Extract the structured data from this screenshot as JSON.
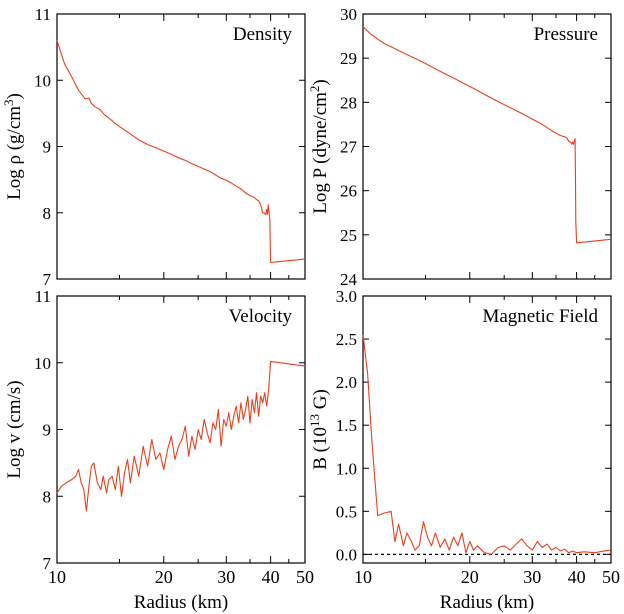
{
  "colors": {
    "series": "#e8401c",
    "axis": "#000000",
    "zero_line": "#000000"
  },
  "chart_data": [
    {
      "type": "line",
      "title": "Density",
      "xlabel": "",
      "ylabel": "Log ρ (g/cm³)",
      "ylabel_parts": [
        "Log ρ (g/cm",
        "3",
        ")"
      ],
      "xscale": "log",
      "xlim": [
        10,
        50
      ],
      "ylim": [
        7,
        11
      ],
      "xticks": [
        10,
        20,
        30,
        40,
        50
      ],
      "yticks": [
        7,
        8,
        9,
        10,
        11
      ],
      "ytick_labels": [
        "7",
        "8",
        "9",
        "10",
        "11"
      ],
      "series": [
        {
          "x": [
            10.0,
            10.5,
            11.0,
            11.5,
            12.0,
            12.3,
            12.5,
            12.8,
            13.2,
            13.6,
            14.0,
            14.5,
            15.0,
            15.5,
            16.0,
            16.5,
            17.0,
            18.0,
            19.0,
            20.0,
            21.0,
            22.0,
            23.0,
            24.0,
            25.0,
            26.0,
            27.0,
            28.0,
            29.0,
            30.0,
            31.0,
            32.0,
            33.0,
            34.0,
            35.0,
            36.0,
            36.5,
            37.0,
            37.5,
            38.0,
            38.3,
            38.6,
            38.8,
            39.0,
            39.2,
            39.4,
            39.6,
            39.8,
            40.0,
            50.0
          ],
          "y": [
            10.6,
            10.25,
            10.05,
            9.85,
            9.72,
            9.73,
            9.65,
            9.6,
            9.56,
            9.48,
            9.43,
            9.36,
            9.3,
            9.25,
            9.2,
            9.15,
            9.1,
            9.03,
            8.98,
            8.93,
            8.88,
            8.83,
            8.79,
            8.74,
            8.7,
            8.66,
            8.62,
            8.57,
            8.52,
            8.49,
            8.45,
            8.4,
            8.36,
            8.3,
            8.26,
            8.23,
            8.2,
            8.18,
            8.12,
            8.0,
            8.0,
            7.98,
            7.97,
            8.05,
            7.98,
            8.12,
            8.0,
            7.9,
            7.25,
            7.3
          ]
        }
      ]
    },
    {
      "type": "line",
      "title": "Pressure",
      "xlabel": "",
      "ylabel": "Log P (dyne/cm²)",
      "ylabel_parts": [
        "Log P (dyne/cm",
        "2",
        ")"
      ],
      "xscale": "log",
      "xlim": [
        10,
        50
      ],
      "ylim": [
        24,
        30
      ],
      "xticks": [
        10,
        20,
        30,
        40,
        50
      ],
      "yticks": [
        24,
        25,
        26,
        27,
        28,
        29,
        30
      ],
      "ytick_labels": [
        "24",
        "25",
        "26",
        "27",
        "28",
        "29",
        "30"
      ],
      "series": [
        {
          "x": [
            10.0,
            10.5,
            11.0,
            11.5,
            12.0,
            13.0,
            14.0,
            15.0,
            16.0,
            17.0,
            18.0,
            19.0,
            20.0,
            22.0,
            24.0,
            26.0,
            28.0,
            30.0,
            32.0,
            34.0,
            35.0,
            36.0,
            37.0,
            37.5,
            38.0,
            38.5,
            38.8,
            39.0,
            39.2,
            39.4,
            39.6,
            39.7,
            39.8,
            40.0,
            50.0
          ],
          "y": [
            29.72,
            29.55,
            29.43,
            29.33,
            29.26,
            29.12,
            29.0,
            28.88,
            28.76,
            28.65,
            28.55,
            28.45,
            28.36,
            28.18,
            28.02,
            27.88,
            27.75,
            27.62,
            27.5,
            27.36,
            27.3,
            27.25,
            27.22,
            27.2,
            27.12,
            27.1,
            27.05,
            27.1,
            27.05,
            27.12,
            27.18,
            26.2,
            25.3,
            24.82,
            24.9
          ]
        }
      ]
    },
    {
      "type": "line",
      "title": "Velocity",
      "xlabel": "Radius (km)",
      "ylabel": "Log v (cm/s)",
      "xscale": "log",
      "xlim": [
        10,
        50
      ],
      "ylim": [
        7,
        11
      ],
      "xticks": [
        10,
        20,
        30,
        40,
        50
      ],
      "xtick_labels": [
        "10",
        "20",
        "30",
        "40",
        "50"
      ],
      "yticks": [
        7,
        8,
        9,
        10,
        11
      ],
      "ytick_labels": [
        "7",
        "8",
        "9",
        "10",
        "11"
      ],
      "series": [
        {
          "x": [
            10.0,
            10.3,
            10.6,
            11.0,
            11.3,
            11.5,
            11.7,
            11.9,
            12.1,
            12.3,
            12.5,
            12.7,
            13.0,
            13.3,
            13.5,
            13.8,
            14.0,
            14.3,
            14.6,
            14.9,
            15.2,
            15.5,
            15.8,
            16.1,
            16.5,
            17.0,
            17.5,
            18.0,
            18.5,
            19.0,
            19.5,
            20.0,
            20.5,
            21.0,
            21.5,
            22.0,
            22.5,
            23.0,
            23.5,
            24.0,
            24.5,
            25.0,
            25.5,
            26.0,
            26.5,
            27.0,
            27.5,
            28.0,
            28.5,
            29.0,
            29.5,
            30.0,
            30.5,
            31.0,
            31.5,
            32.0,
            32.5,
            33.0,
            33.5,
            34.0,
            34.5,
            35.0,
            35.5,
            36.0,
            36.5,
            37.0,
            37.5,
            38.0,
            38.5,
            39.0,
            39.5,
            40.0,
            50.0
          ],
          "y": [
            8.05,
            8.15,
            8.2,
            8.25,
            8.3,
            8.4,
            8.2,
            8.1,
            7.78,
            8.15,
            8.45,
            8.5,
            8.2,
            8.1,
            8.3,
            8.05,
            8.25,
            8.3,
            8.1,
            8.45,
            8.0,
            8.35,
            8.55,
            8.2,
            8.6,
            8.3,
            8.75,
            8.45,
            8.85,
            8.55,
            8.65,
            8.4,
            8.7,
            8.9,
            8.55,
            8.75,
            8.85,
            9.05,
            8.6,
            8.9,
            8.7,
            9.0,
            8.85,
            9.15,
            8.95,
            8.8,
            9.1,
            9.0,
            9.3,
            8.75,
            9.15,
            9.05,
            9.25,
            9.0,
            9.2,
            9.35,
            9.1,
            9.4,
            9.15,
            9.3,
            9.5,
            9.1,
            9.45,
            9.25,
            9.55,
            9.2,
            9.5,
            9.4,
            9.55,
            9.35,
            9.6,
            10.02,
            9.95
          ]
        }
      ]
    },
    {
      "type": "line",
      "title": "Magnetic Field",
      "xlabel": "Radius (km)",
      "ylabel": "B (10¹³ G)",
      "ylabel_parts": [
        "B (10",
        "13",
        " G)"
      ],
      "xscale": "log",
      "xlim": [
        10,
        50
      ],
      "ylim": [
        -0.1,
        3.0
      ],
      "xticks": [
        10,
        20,
        30,
        40,
        50
      ],
      "xtick_labels": [
        "10",
        "20",
        "30",
        "40",
        "50"
      ],
      "yticks": [
        0.0,
        0.5,
        1.0,
        1.5,
        2.0,
        2.5,
        3.0
      ],
      "ytick_labels": [
        "0.0",
        "0.5",
        "1.0",
        "1.5",
        "2.0",
        "2.5",
        "3.0"
      ],
      "zero_line": true,
      "series": [
        {
          "x": [
            10.0,
            10.3,
            10.6,
            11.0,
            11.5,
            12.0,
            12.3,
            12.6,
            13.0,
            13.3,
            13.7,
            14.0,
            14.4,
            14.8,
            15.2,
            15.6,
            16.0,
            16.5,
            17.0,
            17.5,
            18.0,
            18.5,
            19.0,
            19.5,
            20.0,
            20.5,
            21.0,
            22.0,
            23.0,
            24.0,
            25.0,
            26.0,
            27.0,
            28.0,
            29.0,
            30.0,
            31.0,
            32.0,
            33.0,
            34.0,
            35.0,
            36.0,
            37.0,
            38.0,
            39.0,
            40.0,
            42.0,
            45.0,
            48.0,
            50.0
          ],
          "y": [
            2.55,
            2.1,
            1.3,
            0.45,
            0.48,
            0.5,
            0.15,
            0.35,
            0.1,
            0.25,
            0.15,
            0.05,
            0.1,
            0.38,
            0.2,
            0.1,
            0.25,
            0.08,
            0.18,
            0.05,
            0.2,
            0.1,
            0.25,
            0.02,
            0.15,
            0.05,
            0.1,
            0.02,
            0.0,
            0.08,
            0.1,
            0.05,
            0.12,
            0.18,
            0.1,
            0.05,
            0.15,
            0.08,
            0.12,
            0.05,
            0.08,
            0.04,
            0.06,
            0.02,
            0.04,
            0.02,
            0.03,
            0.02,
            0.04,
            0.05
          ]
        }
      ]
    }
  ]
}
